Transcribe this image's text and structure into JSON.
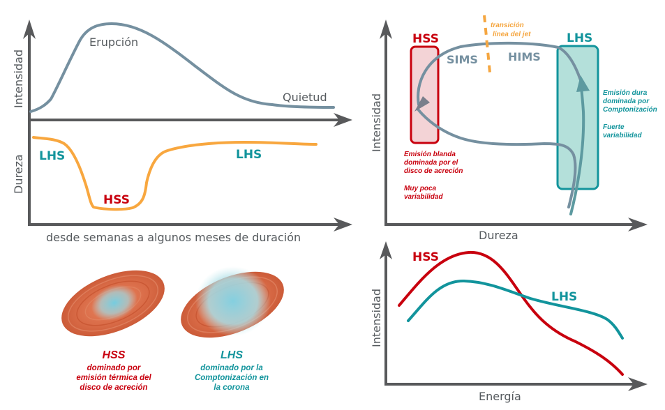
{
  "colors": {
    "axis": "#58595b",
    "grey_curve": "#7590a0",
    "orange_curve": "#f8a73f",
    "hss_red": "#c8000e",
    "lhs_teal": "#12949c",
    "jet_orange": "#f5a640",
    "disk": "#d6623c",
    "corona": "#8fd3df"
  },
  "top_left": {
    "y_label_top": "Intensidad",
    "y_label_bottom": "Dureza",
    "x_label": "desde semanas a algunos meses de duración",
    "erupcion": "Erupción",
    "quietud": "Quietud",
    "lhs_left": "LHS",
    "hss": "HSS",
    "lhs_right": "LHS"
  },
  "top_right": {
    "y_label": "Intensidad",
    "x_label": "Dureza",
    "hss_title": "HSS",
    "lhs_title": "LHS",
    "sims": "SIMS",
    "hims": "HIMS",
    "jet_line1": "transición",
    "jet_line2": "línea del jet",
    "hss_desc": [
      "Emisión blanda",
      "dominada por el",
      "disco de acreción"
    ],
    "hss_var": [
      "Muy poca",
      "variabilidad"
    ],
    "lhs_desc": [
      "Emisión dura",
      "dominada por",
      "Comptonización"
    ],
    "lhs_var": [
      "Fuerte",
      "variabilidad"
    ]
  },
  "bottom_left": {
    "hss_title": "HSS",
    "hss_desc": [
      "dominado por",
      "emisión térmica del",
      "disco de acreción"
    ],
    "lhs_title": "LHS",
    "lhs_desc": [
      "dominado por la",
      "Comptonización en",
      "la corona"
    ]
  },
  "bottom_right": {
    "y_label": "Intensidad",
    "x_label": "Energía",
    "hss": "HSS",
    "lhs": "LHS"
  }
}
